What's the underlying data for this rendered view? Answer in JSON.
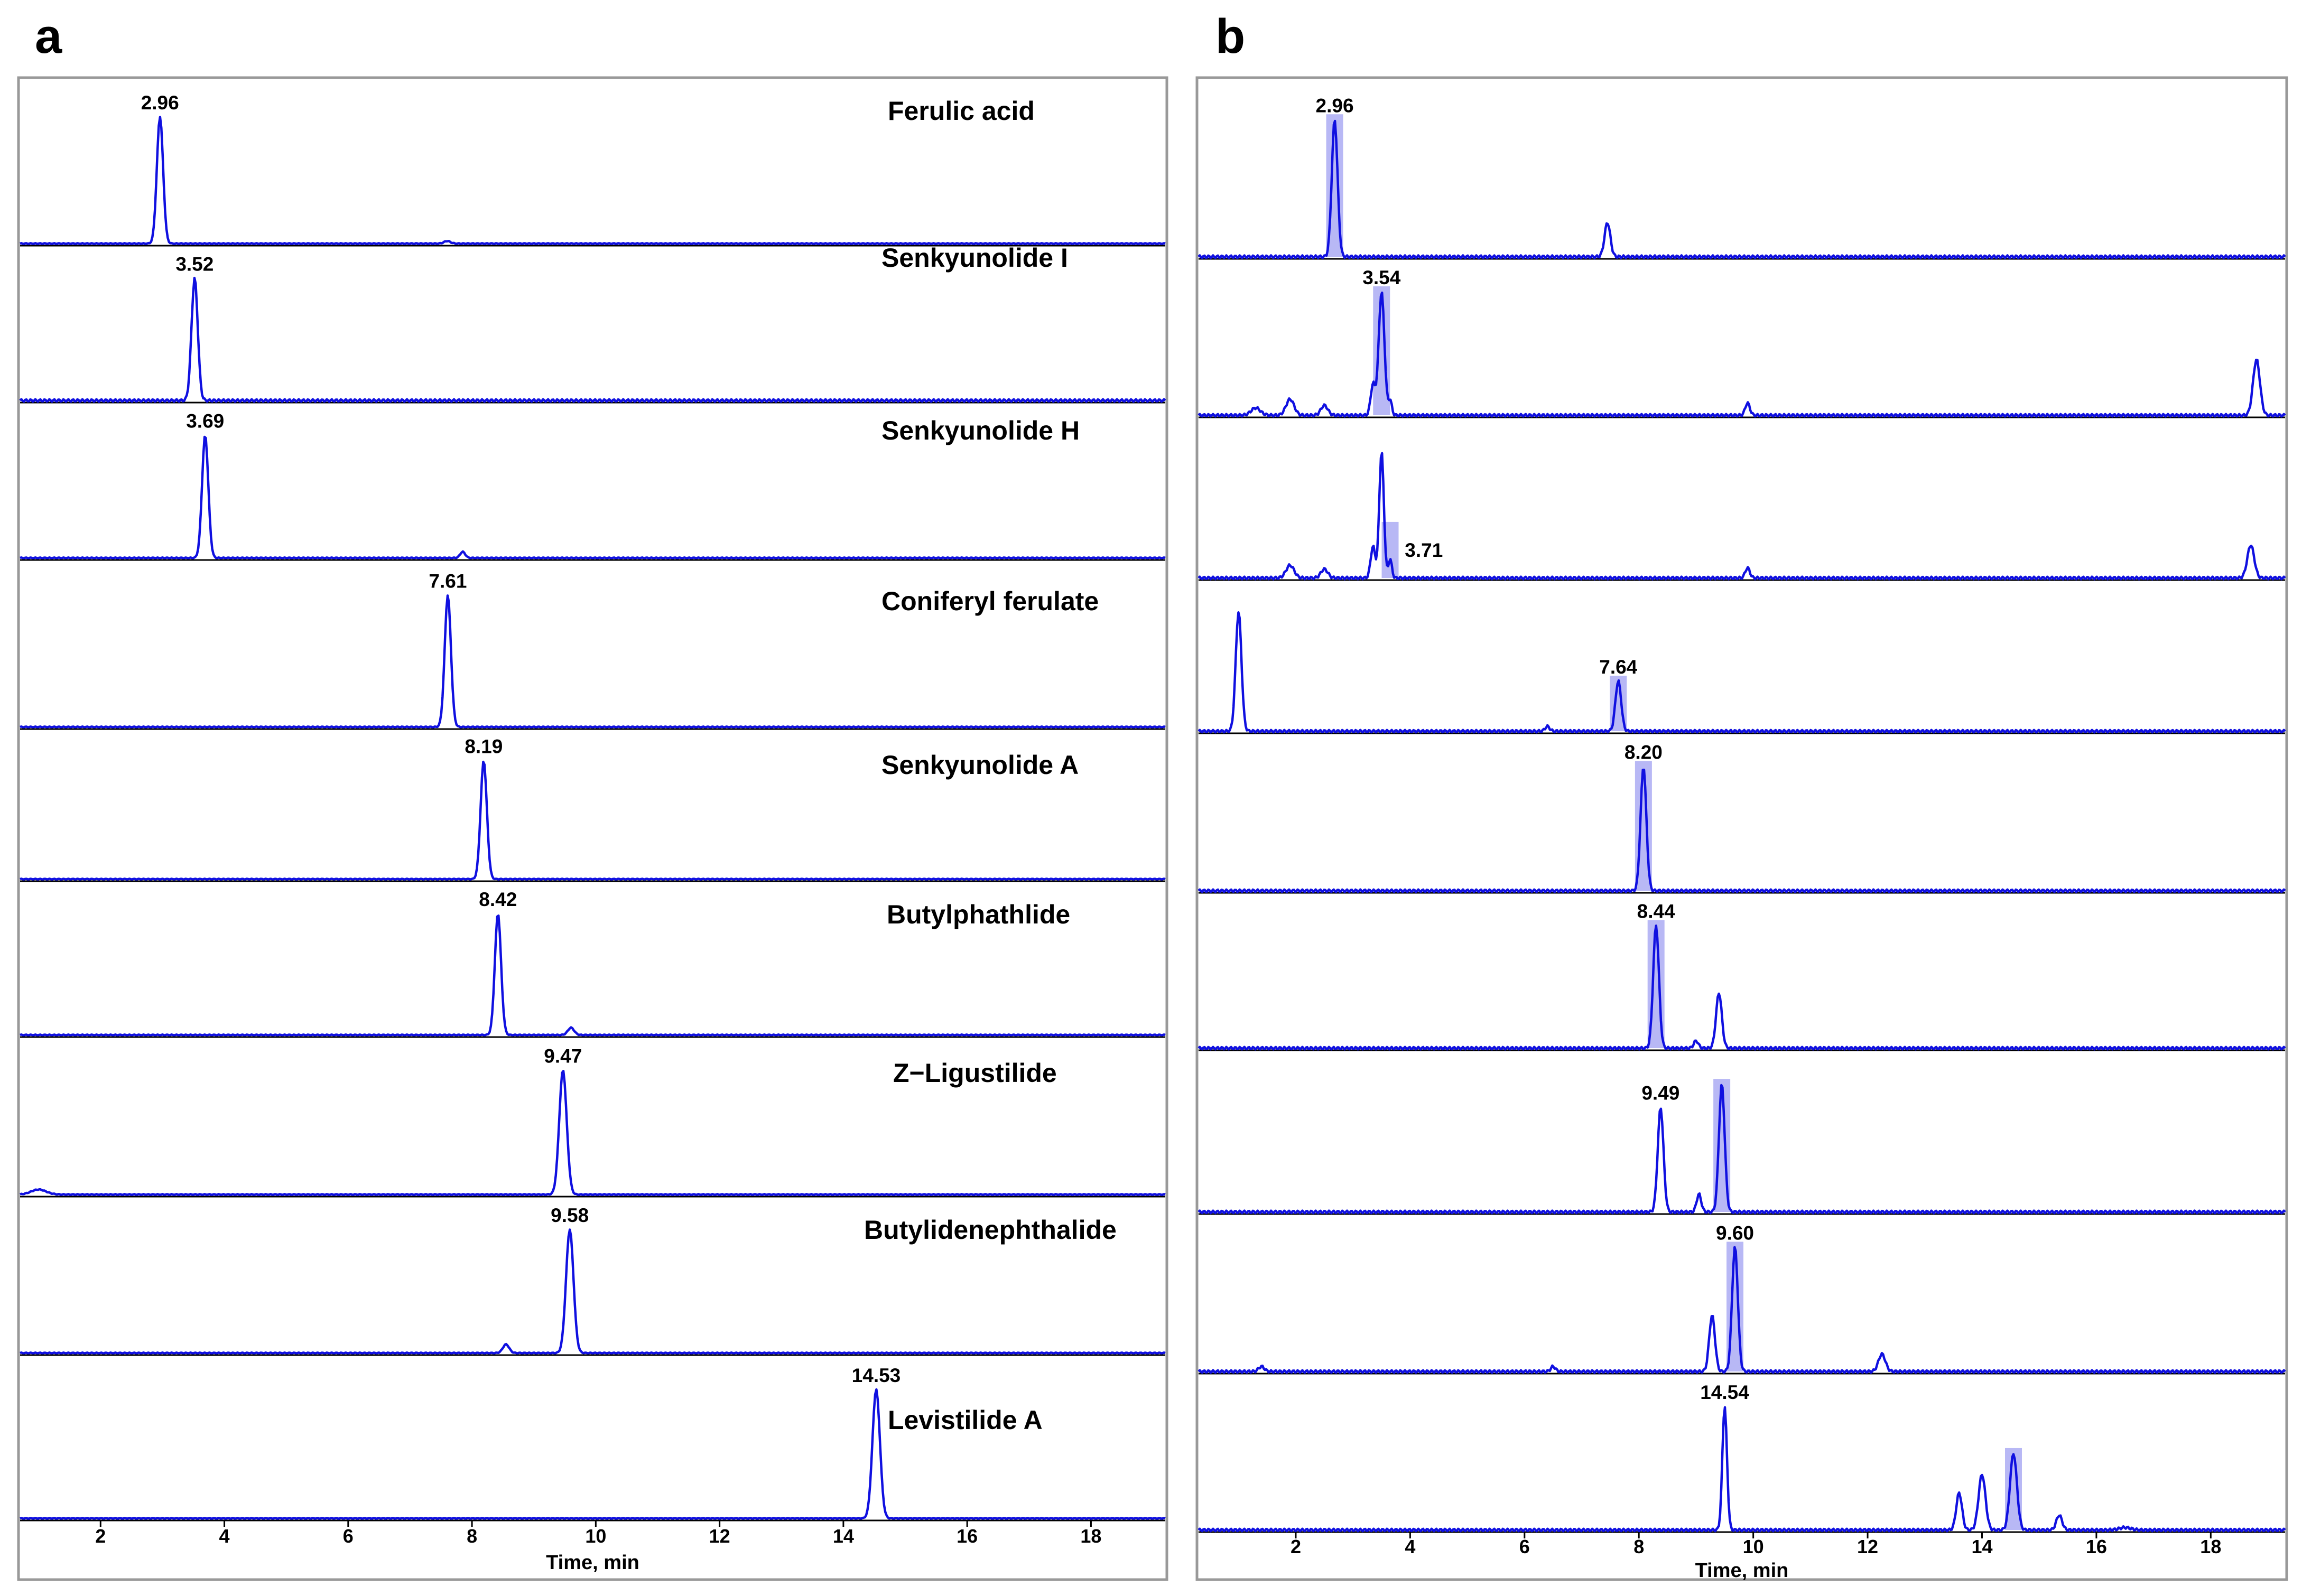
{
  "colors": {
    "trace": "#1010e0",
    "highlight": "#8888ee",
    "frame": "#999999"
  },
  "chart_data": [
    {
      "type": "line",
      "panel_label": "a",
      "xlabel": "Time, min",
      "xlim": [
        0.7,
        19.2
      ],
      "x_ticks": [
        2,
        4,
        6,
        8,
        10,
        12,
        14,
        16,
        18
      ],
      "tick_labels": [
        "2",
        "4",
        "6",
        "8",
        "10",
        "12",
        "14",
        "16",
        "18"
      ],
      "series": [
        {
          "name": "Ferulic acid",
          "retention_time": 2.96,
          "rt_label": "2.96",
          "peaks": [
            [
              2.96,
              1.0,
              0.05
            ],
            [
              7.6,
              0.02,
              0.05
            ]
          ]
        },
        {
          "name": "Senkyunolide I",
          "retention_time": 3.52,
          "rt_label": "3.52",
          "peaks": [
            [
              3.52,
              1.0,
              0.05
            ]
          ]
        },
        {
          "name": "Senkyunolide H",
          "retention_time": 3.69,
          "rt_label": "3.69",
          "peaks": [
            [
              3.69,
              1.0,
              0.05
            ],
            [
              7.85,
              0.05,
              0.04
            ]
          ]
        },
        {
          "name": "Coniferyl ferulate",
          "retention_time": 7.61,
          "rt_label": "7.61",
          "peaks": [
            [
              7.61,
              1.0,
              0.05
            ]
          ]
        },
        {
          "name": "Senkyunolide A",
          "retention_time": 8.19,
          "rt_label": "8.19",
          "peaks": [
            [
              8.19,
              1.0,
              0.05
            ]
          ]
        },
        {
          "name": "Butylphathlide",
          "retention_time": 8.42,
          "rt_label": "8.42",
          "peaks": [
            [
              8.42,
              1.0,
              0.05
            ],
            [
              9.6,
              0.06,
              0.05
            ]
          ]
        },
        {
          "name": "Z−Ligustilide",
          "retention_time": 9.47,
          "rt_label": "9.47",
          "peaks": [
            [
              9.47,
              1.0,
              0.06
            ],
            [
              1.0,
              0.04,
              0.12
            ]
          ]
        },
        {
          "name": "Butylidenephthalide",
          "retention_time": 9.58,
          "rt_label": "9.58",
          "peaks": [
            [
              9.58,
              1.0,
              0.06
            ],
            [
              8.55,
              0.07,
              0.05
            ]
          ]
        },
        {
          "name": "Levistilide A",
          "retention_time": 14.53,
          "rt_label": "14.53",
          "peaks": [
            [
              14.53,
              1.0,
              0.06
            ]
          ]
        }
      ]
    },
    {
      "type": "line",
      "panel_label": "b",
      "xlabel": "Time, min",
      "xlim": [
        0.3,
        19.3
      ],
      "x_ticks": [
        2,
        4,
        6,
        8,
        10,
        12,
        14,
        16,
        18
      ],
      "tick_labels": [
        "2",
        "4",
        "6",
        "8",
        "10",
        "12",
        "14",
        "16",
        "18"
      ],
      "series": [
        {
          "name": "Ferulic acid",
          "retention_time": 2.96,
          "rt_label": "2.96",
          "peaks": [
            [
              2.68,
              1.0,
              0.05
            ],
            [
              7.45,
              0.25,
              0.05
            ]
          ]
        },
        {
          "name": "Senkyunolide I",
          "retention_time": 3.54,
          "rt_label": "3.54",
          "peaks": [
            [
              3.5,
              1.0,
              0.05
            ],
            [
              3.35,
              0.25,
              0.04
            ],
            [
              3.65,
              0.12,
              0.03
            ],
            [
              1.9,
              0.13,
              0.07
            ],
            [
              2.5,
              0.08,
              0.06
            ],
            [
              1.3,
              0.06,
              0.08
            ],
            [
              9.9,
              0.1,
              0.04
            ],
            [
              18.8,
              0.45,
              0.06
            ]
          ]
        },
        {
          "name": "Senkyunolide H",
          "retention_time": 3.71,
          "rt_label": "3.71",
          "peaks": [
            [
              3.5,
              1.0,
              0.04
            ],
            [
              3.35,
              0.25,
              0.04
            ],
            [
              3.65,
              0.15,
              0.03
            ],
            [
              1.9,
              0.1,
              0.07
            ],
            [
              2.5,
              0.07,
              0.06
            ],
            [
              9.9,
              0.08,
              0.04
            ],
            [
              18.7,
              0.26,
              0.06
            ]
          ]
        },
        {
          "name": "Coniferyl ferulate",
          "retention_time": 7.64,
          "rt_label": "7.64",
          "peaks": [
            [
              7.64,
              0.42,
              0.05
            ],
            [
              1.0,
              1.0,
              0.05
            ],
            [
              6.4,
              0.04,
              0.04
            ]
          ]
        },
        {
          "name": "Senkyunolide A",
          "retention_time": 8.2,
          "rt_label": "8.20",
          "peaks": [
            [
              8.08,
              1.0,
              0.05
            ]
          ]
        },
        {
          "name": "Butylphathlide",
          "retention_time": 8.44,
          "rt_label": "8.44",
          "peaks": [
            [
              8.3,
              1.0,
              0.05
            ],
            [
              9.4,
              0.45,
              0.05
            ],
            [
              9.0,
              0.06,
              0.04
            ]
          ]
        },
        {
          "name": "Z−Ligustilide",
          "retention_time": 9.49,
          "rt_label": "9.49",
          "peaks": [
            [
              8.38,
              0.82,
              0.05
            ],
            [
              9.45,
              1.0,
              0.05
            ],
            [
              9.05,
              0.14,
              0.04
            ]
          ]
        },
        {
          "name": "Butylidenephthalide",
          "retention_time": 9.6,
          "rt_label": "9.60",
          "peaks": [
            [
              9.68,
              1.0,
              0.05
            ],
            [
              9.28,
              0.45,
              0.05
            ],
            [
              12.25,
              0.14,
              0.06
            ],
            [
              1.4,
              0.04,
              0.05
            ],
            [
              6.5,
              0.04,
              0.04
            ]
          ]
        },
        {
          "name": "Levistilide A",
          "retention_time": 14.54,
          "rt_label": "14.54",
          "peaks": [
            [
              9.5,
              1.0,
              0.04
            ],
            [
              14.55,
              0.62,
              0.06
            ],
            [
              14.0,
              0.45,
              0.06
            ],
            [
              13.6,
              0.3,
              0.05
            ],
            [
              15.35,
              0.12,
              0.05
            ],
            [
              16.5,
              0.02,
              0.1
            ]
          ]
        }
      ]
    }
  ]
}
